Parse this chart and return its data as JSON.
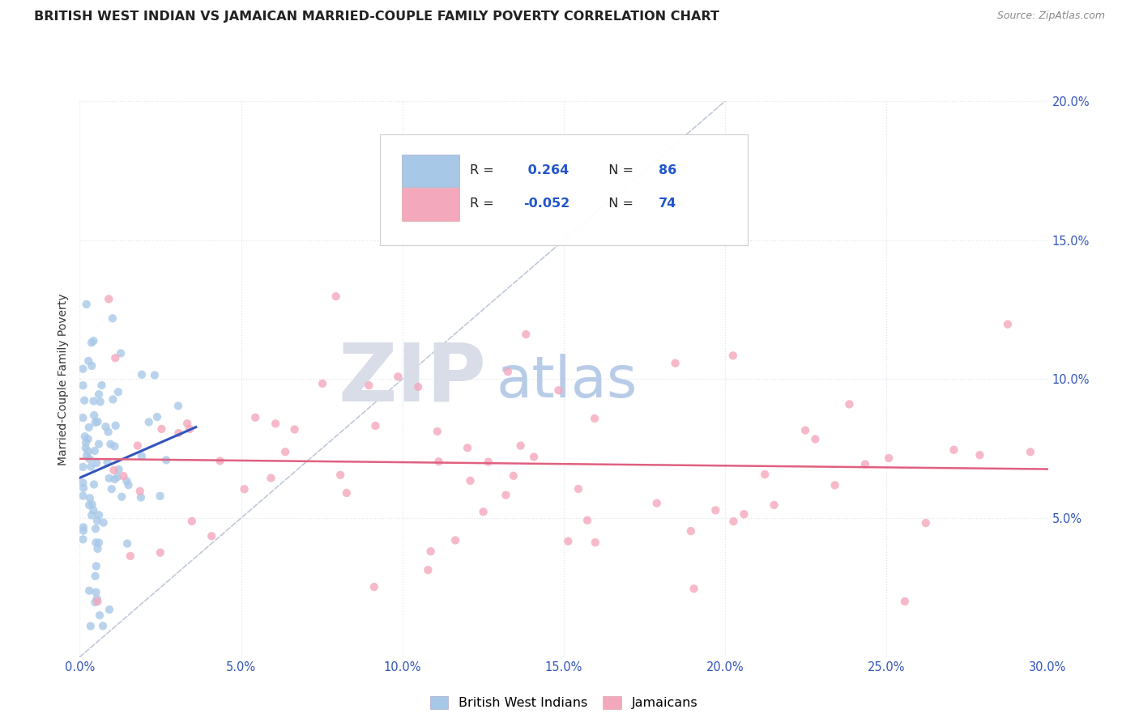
{
  "title": "BRITISH WEST INDIAN VS JAMAICAN MARRIED-COUPLE FAMILY POVERTY CORRELATION CHART",
  "source": "Source: ZipAtlas.com",
  "ylabel": "Married-Couple Family Poverty",
  "xmin": 0.0,
  "xmax": 0.3,
  "ymin": 0.0,
  "ymax": 0.2,
  "bwi_color": "#a8c8e8",
  "jamaican_color": "#f4a8bc",
  "bwi_line_color": "#3355bb",
  "jamaican_line_color": "#e06080",
  "diagonal_color": "#c0c8d8",
  "R_bwi": 0.264,
  "N_bwi": 86,
  "R_jam": -0.052,
  "N_jam": 74,
  "legend_color": "#2255cc",
  "background_color": "#ffffff",
  "watermark_ZIP": "ZIP",
  "watermark_atlas": "atlas",
  "watermark_ZIP_color": "#d8dde8",
  "watermark_atlas_color": "#b8cce8",
  "grid_color": "#e0e4ec",
  "tick_color": "#3355bb",
  "title_color": "#222222",
  "source_color": "#888888"
}
